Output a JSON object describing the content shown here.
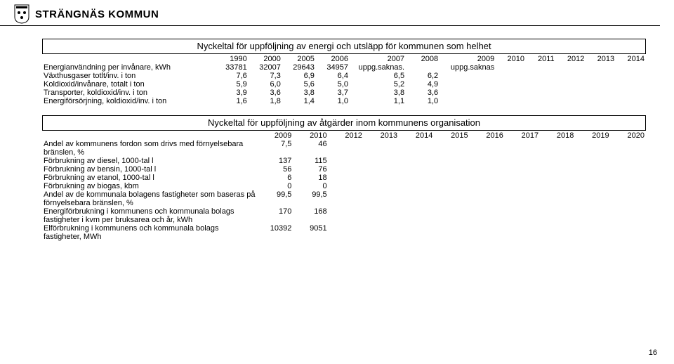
{
  "header": {
    "municipality": "STRÄNGNÄS KOMMUN"
  },
  "table1": {
    "title": "Nyckeltal för uppföljning av energi och utsläpp för kommunen som helhet",
    "years": [
      "1990",
      "2000",
      "2005",
      "2006",
      "2007",
      "2008",
      "2009",
      "2010",
      "2011",
      "2012",
      "2013",
      "2014"
    ],
    "rows": [
      {
        "label": "Energianvändning per invånare, kWh",
        "v": [
          "33781",
          "32007",
          "29643",
          "34957",
          "uppg.saknas.",
          "",
          "uppg.saknas",
          "",
          "",
          "",
          "",
          ""
        ]
      },
      {
        "label": "Växthusgaser totlt/inv. i ton",
        "v": [
          "7,6",
          "7,3",
          "6,9",
          "6,4",
          "6,5",
          "6,2",
          "",
          "",
          "",
          "",
          "",
          ""
        ]
      },
      {
        "label": "Koldioxid/invånare, totalt i ton",
        "v": [
          "5,9",
          "6,0",
          "5,6",
          "5,0",
          "5,2",
          "4,9",
          "",
          "",
          "",
          "",
          "",
          ""
        ]
      },
      {
        "label": "Transporter, koldioxid/inv. i ton",
        "v": [
          "3,9",
          "3,6",
          "3,8",
          "3,7",
          "3,8",
          "3,6",
          "",
          "",
          "",
          "",
          "",
          ""
        ]
      },
      {
        "label": "Energiförsörjning, koldioxid/inv. i ton",
        "v": [
          "1,6",
          "1,8",
          "1,4",
          "1,0",
          "1,1",
          "1,0",
          "",
          "",
          "",
          "",
          "",
          ""
        ]
      }
    ]
  },
  "table2": {
    "title": "Nyckeltal för uppföljning av åtgärder inom kommunens organisation",
    "years": [
      "2009",
      "2010",
      "2012",
      "2013",
      "2014",
      "2015",
      "2016",
      "2017",
      "2018",
      "2019",
      "2020"
    ],
    "rows": [
      {
        "label": "Andel av kommunens fordon som drivs med förnyelsebara bränslen, %",
        "v": [
          "7,5",
          "46",
          "",
          "",
          "",
          "",
          "",
          "",
          "",
          "",
          ""
        ]
      },
      {
        "label": "Förbrukning av diesel, 1000-tal l",
        "v": [
          "137",
          "115",
          "",
          "",
          "",
          "",
          "",
          "",
          "",
          "",
          ""
        ]
      },
      {
        "label": "Förbrukning av bensin, 1000-tal l",
        "v": [
          "56",
          "76",
          "",
          "",
          "",
          "",
          "",
          "",
          "",
          "",
          ""
        ]
      },
      {
        "label": "Förbrukning av etanol, 1000-tal l",
        "v": [
          "6",
          "18",
          "",
          "",
          "",
          "",
          "",
          "",
          "",
          "",
          ""
        ]
      },
      {
        "label": "Förbrukning av biogas, kbm",
        "v": [
          "0",
          "0",
          "",
          "",
          "",
          "",
          "",
          "",
          "",
          "",
          ""
        ]
      },
      {
        "label": "Andel av de kommunala bolagens fastigheter som baseras på förnyelsebara bränslen, %",
        "v": [
          "99,5",
          "99,5",
          "",
          "",
          "",
          "",
          "",
          "",
          "",
          "",
          ""
        ]
      },
      {
        "label": "Energiförbrukning i kommunens och kommunala bolags fastigheter i kvm per bruksarea och år, kWh",
        "v": [
          "170",
          "168",
          "",
          "",
          "",
          "",
          "",
          "",
          "",
          "",
          ""
        ]
      },
      {
        "label": "Elförbrukning i kommunens och kommunala bolags  fastigheter, MWh",
        "v": [
          "10392",
          "9051",
          "",
          "",
          "",
          "",
          "",
          "",
          "",
          "",
          ""
        ]
      }
    ]
  },
  "page": "16"
}
